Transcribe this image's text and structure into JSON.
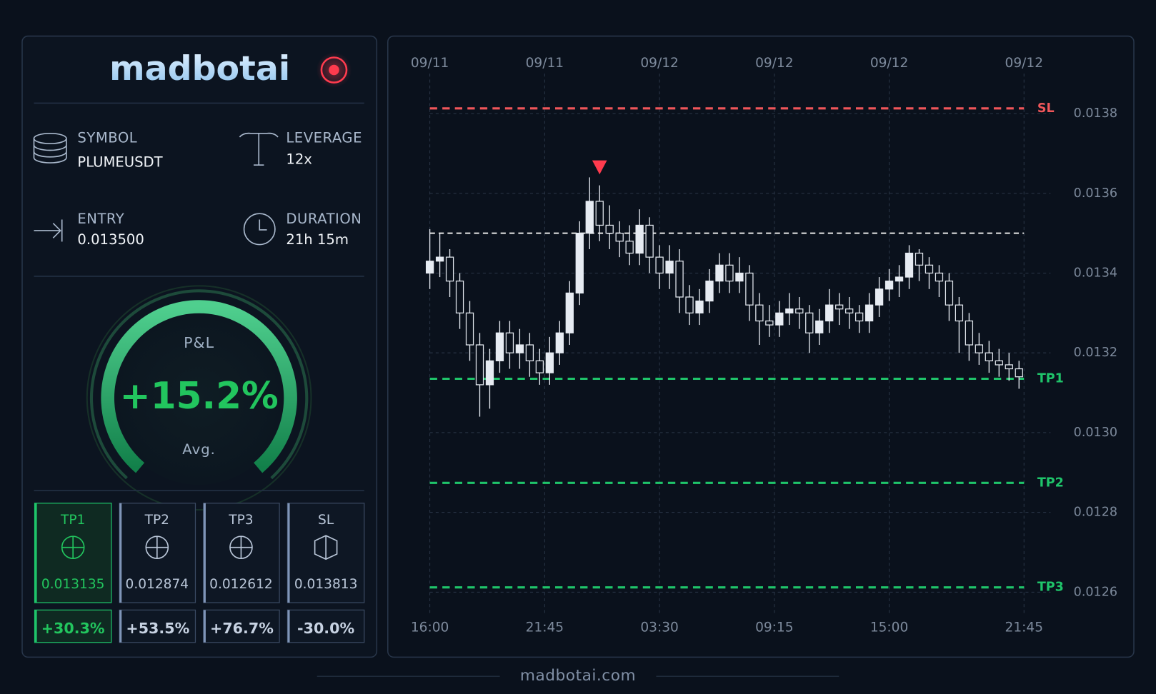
{
  "header": {
    "brand": "madbotai"
  },
  "fields": [
    {
      "label": "SYMBOL",
      "value": "PLUMEUSDT"
    },
    {
      "label": "LEVERAGE",
      "value": "12x"
    },
    {
      "label": "ENTRY",
      "value": "0.013500"
    },
    {
      "label": "DURATION",
      "value": "21h 15m"
    }
  ],
  "pnl": {
    "label": "P&L",
    "value": "+15.2%",
    "note": "Avg."
  },
  "targets": [
    {
      "name": "TP1",
      "price": "0.013135",
      "change": "+30.3%"
    },
    {
      "name": "TP2",
      "price": "0.012874",
      "change": "+53.5%"
    },
    {
      "name": "TP3",
      "price": "0.012612",
      "change": "+76.7%"
    },
    {
      "name": "SL",
      "price": "0.013813",
      "change": "-30.0%"
    }
  ],
  "footer": "madbotai.com",
  "chart_data": {
    "type": "candlestick",
    "x": [
      0,
      0.5,
      1,
      1.5,
      2,
      2.5,
      3,
      3.5,
      4,
      4.5,
      5,
      5.5,
      6,
      6.5,
      7,
      7.5,
      8,
      8.5,
      9,
      9.5,
      10,
      10.5,
      11,
      11.5,
      12,
      12.5,
      13,
      13.5,
      14,
      14.5,
      15,
      15.5,
      16,
      16.5,
      17,
      17.5,
      18,
      18.5,
      19,
      19.5,
      20,
      20.5,
      21,
      21.5,
      22,
      22.5,
      23,
      23.5,
      24,
      24.5,
      25,
      25.5,
      26,
      26.5,
      27,
      27.5,
      28,
      28.5,
      29,
      29.5
    ],
    "open": [
      0.0134,
      0.01343,
      0.01344,
      0.01338,
      0.0133,
      0.01322,
      0.01312,
      0.01318,
      0.01325,
      0.0132,
      0.01322,
      0.01318,
      0.01315,
      0.0132,
      0.01325,
      0.01335,
      0.0135,
      0.01358,
      0.01352,
      0.0135,
      0.01348,
      0.01345,
      0.01352,
      0.01344,
      0.0134,
      0.01343,
      0.01334,
      0.0133,
      0.01333,
      0.01338,
      0.01342,
      0.01338,
      0.0134,
      0.01332,
      0.01328,
      0.01327,
      0.0133,
      0.01331,
      0.0133,
      0.01325,
      0.01328,
      0.01332,
      0.01331,
      0.0133,
      0.01328,
      0.01332,
      0.01336,
      0.01338,
      0.01339,
      0.01345,
      0.01342,
      0.0134,
      0.01338,
      0.01332,
      0.01328,
      0.01322,
      0.0132,
      0.01318,
      0.01317,
      0.01316
    ],
    "high": [
      0.01351,
      0.0135,
      0.01346,
      0.0134,
      0.01333,
      0.01325,
      0.01321,
      0.01328,
      0.01328,
      0.01326,
      0.01325,
      0.01321,
      0.01324,
      0.01328,
      0.01338,
      0.01353,
      0.01364,
      0.01362,
      0.01357,
      0.01353,
      0.01352,
      0.01356,
      0.01354,
      0.01347,
      0.01347,
      0.01346,
      0.01337,
      0.01336,
      0.01341,
      0.01345,
      0.01345,
      0.01344,
      0.01342,
      0.01335,
      0.01332,
      0.01333,
      0.01335,
      0.01334,
      0.01332,
      0.01331,
      0.01336,
      0.01335,
      0.01334,
      0.01332,
      0.01335,
      0.01339,
      0.01341,
      0.01342,
      0.01347,
      0.01346,
      0.01344,
      0.01342,
      0.0134,
      0.01334,
      0.0133,
      0.01325,
      0.01323,
      0.01321,
      0.0132,
      0.01318
    ],
    "low": [
      0.01336,
      0.01339,
      0.01334,
      0.01326,
      0.01318,
      0.01304,
      0.01306,
      0.01315,
      0.01316,
      0.01316,
      0.01314,
      0.01312,
      0.01312,
      0.01317,
      0.01322,
      0.01332,
      0.01346,
      0.01348,
      0.01346,
      0.01344,
      0.01342,
      0.01342,
      0.0134,
      0.01336,
      0.01336,
      0.0133,
      0.01327,
      0.01327,
      0.0133,
      0.01335,
      0.01335,
      0.01335,
      0.01328,
      0.01322,
      0.01324,
      0.01324,
      0.01327,
      0.01326,
      0.0132,
      0.01322,
      0.01325,
      0.01327,
      0.01326,
      0.01325,
      0.01325,
      0.01329,
      0.01333,
      0.01334,
      0.01336,
      0.01338,
      0.01336,
      0.01334,
      0.01328,
      0.0132,
      0.01318,
      0.01317,
      0.01315,
      0.01314,
      0.01313,
      0.01311
    ],
    "close": [
      0.01343,
      0.01344,
      0.01338,
      0.0133,
      0.01322,
      0.01312,
      0.01318,
      0.01325,
      0.0132,
      0.01322,
      0.01318,
      0.01315,
      0.0132,
      0.01325,
      0.01335,
      0.0135,
      0.01358,
      0.01352,
      0.0135,
      0.01348,
      0.01345,
      0.01352,
      0.01344,
      0.0134,
      0.01343,
      0.01334,
      0.0133,
      0.01333,
      0.01338,
      0.01342,
      0.01338,
      0.0134,
      0.01332,
      0.01328,
      0.01327,
      0.0133,
      0.01331,
      0.0133,
      0.01325,
      0.01328,
      0.01332,
      0.01331,
      0.0133,
      0.01328,
      0.01332,
      0.01336,
      0.01338,
      0.01339,
      0.01345,
      0.01342,
      0.0134,
      0.01338,
      0.01332,
      0.01328,
      0.01322,
      0.0132,
      0.01318,
      0.01317,
      0.01316,
      0.01314
    ],
    "candle_color": "#e6ebf2",
    "xlim": [
      0,
      29.75
    ],
    "xticks": [
      {
        "value": 0,
        "label": "16:00"
      },
      {
        "value": 5.75,
        "label": "21:45"
      },
      {
        "value": 11.5,
        "label": "03:30"
      },
      {
        "value": 17.25,
        "label": "09:15"
      },
      {
        "value": 23,
        "label": "15:00"
      },
      {
        "value": 29.75,
        "label": "21:45"
      }
    ],
    "xtick_dates": [
      "09/11",
      "09/11",
      "09/12",
      "09/12",
      "09/12",
      "09/12"
    ],
    "ylim": [
      0.01257,
      0.0139
    ],
    "yticks": [
      0.0126,
      0.0128,
      {
        "value": 0.013,
        "label": "0.0130"
      },
      0.0132,
      0.0134,
      0.0136,
      0.0138
    ],
    "grid": true,
    "levels": [
      {
        "name": "SL",
        "value": 0.013813,
        "color": "#f0565a"
      },
      {
        "name": "TP1",
        "value": 0.013135,
        "color": "#1fc46a"
      },
      {
        "name": "TP2",
        "value": 0.012874,
        "color": "#1fc46a"
      },
      {
        "name": "TP3",
        "value": 0.012612,
        "color": "#1fc46a"
      }
    ],
    "entry_level": {
      "value": 0.0135,
      "color": "#e8e8e8"
    },
    "signal": {
      "x": 8.5,
      "y": 0.01364,
      "color": "#ff3b4e"
    }
  }
}
